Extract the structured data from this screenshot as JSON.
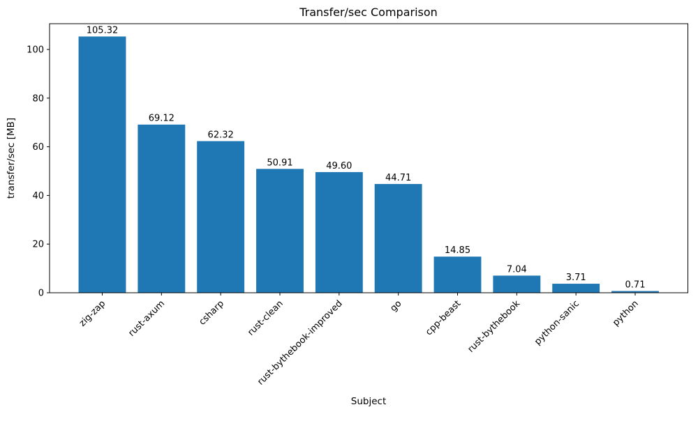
{
  "chart_data": {
    "type": "bar",
    "title": "Transfer/sec Comparison",
    "xlabel": "Subject",
    "ylabel": "transfer/sec [MB]",
    "categories": [
      "zig-zap",
      "rust-axum",
      "csharp",
      "rust-clean",
      "rust-bythebook-improved",
      "go",
      "cpp-beast",
      "rust-bythebook",
      "python-sanic",
      "python"
    ],
    "values": [
      105.32,
      69.12,
      62.32,
      50.91,
      49.6,
      44.71,
      14.85,
      7.04,
      3.71,
      0.71
    ],
    "value_labels": [
      "105.32",
      "69.12",
      "62.32",
      "50.91",
      "49.60",
      "44.71",
      "14.85",
      "7.04",
      "3.71",
      "0.71"
    ],
    "yticks": [
      0,
      20,
      40,
      60,
      80,
      100
    ],
    "ylim": [
      0,
      110.59
    ],
    "bar_color": "#1f77b4",
    "bar_rel_width": 0.8,
    "x_tick_rotation_deg": 45,
    "grid": "off",
    "legend": "none"
  }
}
